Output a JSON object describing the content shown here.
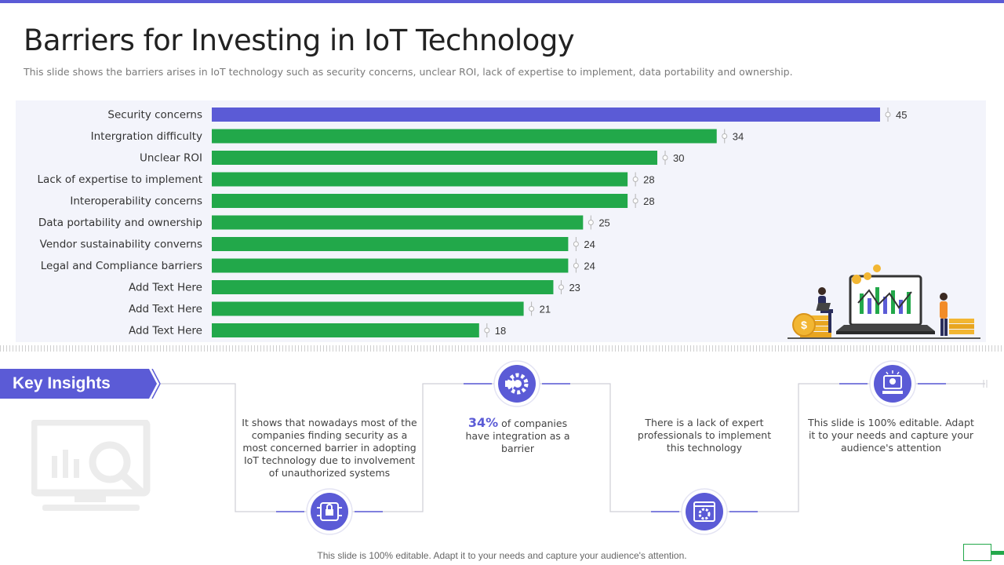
{
  "page": {
    "title": "Barriers for Investing in IoT Technology",
    "subtitle": "This slide shows the barriers arises in IoT technology such as security concerns, unclear ROI, lack of expertise to implement, data portability and ownership.",
    "footer": "This slide is 100% editable. Adapt it to your needs and capture your audience's attention."
  },
  "colors": {
    "accent": "#5b5bd6",
    "bar_highlight": "#5b5bd6",
    "bar": "#22a84a",
    "chart_bg": "#f3f4fb"
  },
  "chart_data": {
    "type": "bar",
    "orientation": "horizontal",
    "categories": [
      "Security concerns",
      "Intergration difficulty",
      "Unclear ROI",
      "Lack of expertise to implement",
      "Interoperability concerns",
      "Data portability and ownership",
      "Vendor sustainability converns",
      "Legal and Compliance barriers",
      "Add Text Here",
      "Add Text Here",
      "Add Text Here"
    ],
    "values": [
      45,
      34,
      30,
      28,
      28,
      25,
      24,
      24,
      23,
      21,
      18
    ],
    "highlight_index": 0,
    "title": "",
    "xlabel": "",
    "ylabel": "",
    "xlim": [
      0,
      45
    ],
    "grid": false,
    "legend": "none"
  },
  "insights": {
    "banner_label": "Key Insights",
    "items": [
      {
        "text": "It shows that nowadays most of the companies finding security as a most concerned barrier  in adopting IoT technology due to involvement  of unauthorized systems",
        "icon": "security-chip-icon"
      },
      {
        "highlight": "34%",
        "text": " of companies have integration as a barrier",
        "icon": "integration-gear-icon"
      },
      {
        "text": "There  is a lack of expert professionals  to implement this technology",
        "icon": "expert-settings-icon"
      },
      {
        "text": "This slide is 100% editable. Adapt it to your needs and capture your audience's attention",
        "icon": "editable-idea-icon"
      }
    ]
  },
  "icons": {
    "decorative": "analytics-monitor-icon",
    "illustration": "investment-illustration"
  }
}
